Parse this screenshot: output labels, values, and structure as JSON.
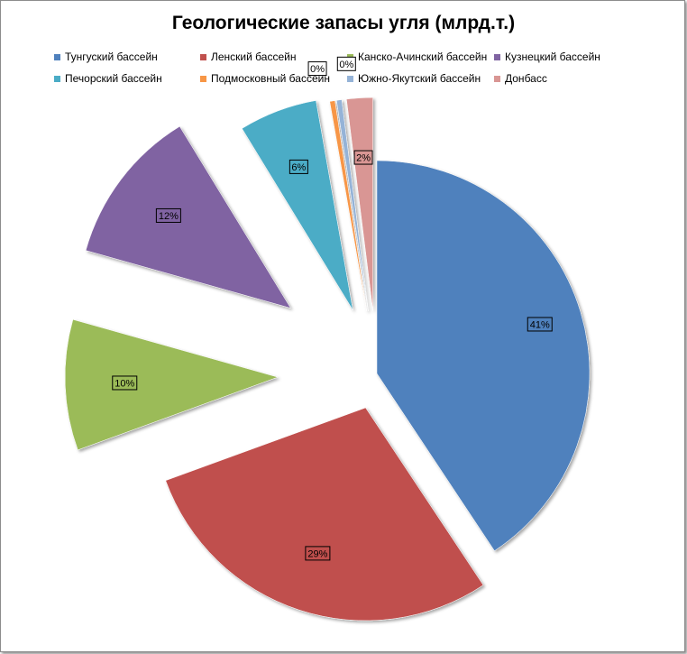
{
  "chart_data": {
    "type": "pie",
    "title": "Геологические запасы угля (млрд.т.)",
    "legend_position": "top",
    "categories": [
      "Тунгуский бассейн",
      "Ленский бассейн",
      "Канско-Ачинский бассейн",
      "Кузнецкий бассейн",
      "Печорский бассейн",
      "Подмосковный бассейн",
      "Южно-Якутский бассейн",
      "Донбасс"
    ],
    "values": [
      41,
      29,
      10,
      12,
      6,
      0.4,
      0.4,
      2
    ],
    "labels": [
      "41%",
      "29%",
      "10%",
      "12%",
      "6%",
      "0%",
      "0%",
      "2%"
    ],
    "colors": [
      "#4f81bd",
      "#c0504d",
      "#9bbb59",
      "#8064a2",
      "#4bacc6",
      "#f79646",
      "#95b3d7",
      "#d99694"
    ],
    "exploded": true
  }
}
